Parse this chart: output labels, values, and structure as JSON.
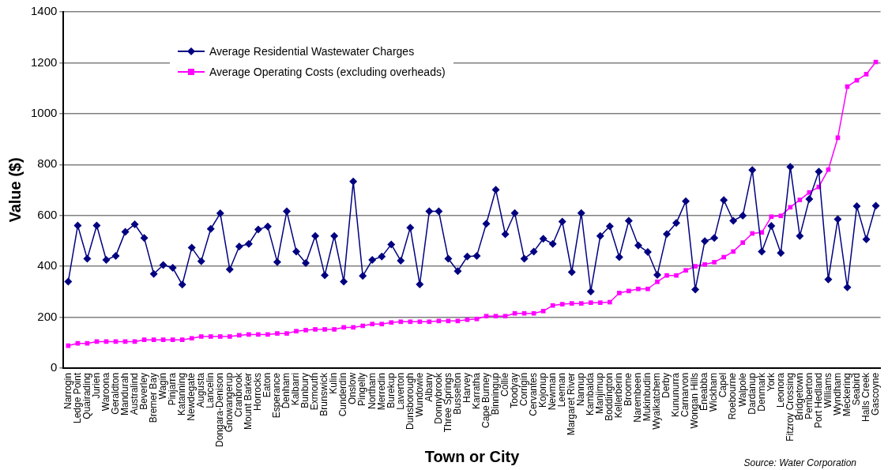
{
  "chart_data": {
    "type": "line",
    "xlabel": "Town or City",
    "ylabel": "Value ($)",
    "annotations": [
      "Source: Water Corporation"
    ],
    "categories": [
      "Narrogin",
      "Ledge Point",
      "Quairading",
      "Jurien",
      "Waroona",
      "Geraldton",
      "Mandurah",
      "Australind",
      "Beverley",
      "Bremer Bay",
      "Wagin",
      "Pinjarra",
      "Katanning",
      "Newdegate",
      "Augusta",
      "Lancelin",
      "Dongara-Denison",
      "Gnowangerup",
      "Cranbrook",
      "Mount Barker",
      "Horrocks",
      "Eaton",
      "Esperance",
      "Denham",
      "Kalbarri",
      "Bunbury",
      "Exmouth",
      "Brunswick",
      "Kulin",
      "Cunderdin",
      "Onslow",
      "Pingelly",
      "Northam",
      "Merredin",
      "Burekup",
      "Laverton",
      "Dunsborough",
      "Wundowie",
      "Albany",
      "Donnybrook",
      "Three Springs",
      "Busselton",
      "Harvey",
      "Karratha",
      "Cape Burney",
      "Binningup",
      "Collie",
      "Toodyay",
      "Corrigin",
      "Cervantes",
      "Kojonup",
      "Newman",
      "Leeman",
      "Margaret River",
      "Nannup",
      "Kambalda",
      "Manjimup",
      "Boddington",
      "Kellerberin",
      "Broome",
      "Narembeen",
      "Mukinbudin",
      "Wyalkatchem",
      "Derby",
      "Kununurra",
      "Carnarvon",
      "Wongan Hills",
      "Eneabba",
      "Wickham",
      "Capel",
      "Roebourne",
      "Walpole",
      "Dardanup",
      "Denmark",
      "York",
      "Leonora",
      "Fitzroy Crossing",
      "Bridgetown",
      "Pemberton",
      "Port Hedland",
      "Williams",
      "Wyndham",
      "Meckering",
      "Seabird",
      "Halls Creek",
      "Gascoyne"
    ],
    "series": [
      {
        "name": "Average Residential Wastewater Charges",
        "color": "#000080",
        "marker": "diamond",
        "values": [
          340,
          560,
          430,
          560,
          425,
          441,
          535,
          565,
          511,
          370,
          405,
          394,
          328,
          473,
          420,
          547,
          608,
          388,
          478,
          488,
          545,
          556,
          417,
          616,
          458,
          413,
          519,
          365,
          519,
          340,
          733,
          362,
          425,
          438,
          486,
          422,
          552,
          329,
          616,
          616,
          430,
          381,
          438,
          441,
          567,
          701,
          526,
          609,
          430,
          458,
          508,
          488,
          576,
          377,
          609,
          301,
          519,
          557,
          436,
          579,
          482,
          456,
          366,
          527,
          570,
          656,
          309,
          499,
          511,
          660,
          579,
          599,
          778,
          458,
          559,
          452,
          791,
          519,
          664,
          772,
          348,
          585,
          317,
          636,
          506,
          638
        ]
      },
      {
        "name": "Average Operating Costs (excluding overheads)",
        "color": "#ff00ff",
        "marker": "square",
        "values": [
          88,
          97,
          97,
          104,
          104,
          104,
          104,
          104,
          111,
          111,
          111,
          111,
          111,
          117,
          124,
          124,
          124,
          124,
          129,
          132,
          132,
          132,
          136,
          136,
          145,
          149,
          152,
          152,
          152,
          160,
          160,
          166,
          173,
          173,
          179,
          182,
          182,
          182,
          182,
          185,
          185,
          185,
          190,
          193,
          204,
          204,
          204,
          215,
          215,
          215,
          224,
          246,
          251,
          254,
          254,
          257,
          257,
          259,
          295,
          303,
          311,
          311,
          339,
          364,
          364,
          384,
          400,
          407,
          416,
          436,
          458,
          493,
          529,
          533,
          595,
          598,
          632,
          661,
          690,
          712,
          780,
          905,
          1106,
          1131,
          1155,
          1203
        ]
      }
    ],
    "ylim": [
      0,
      1400
    ],
    "yticks": [
      0,
      200,
      400,
      600,
      800,
      1000,
      1200,
      1400
    ],
    "grid": "y",
    "legend": "top left",
    "line_style": "solid"
  }
}
